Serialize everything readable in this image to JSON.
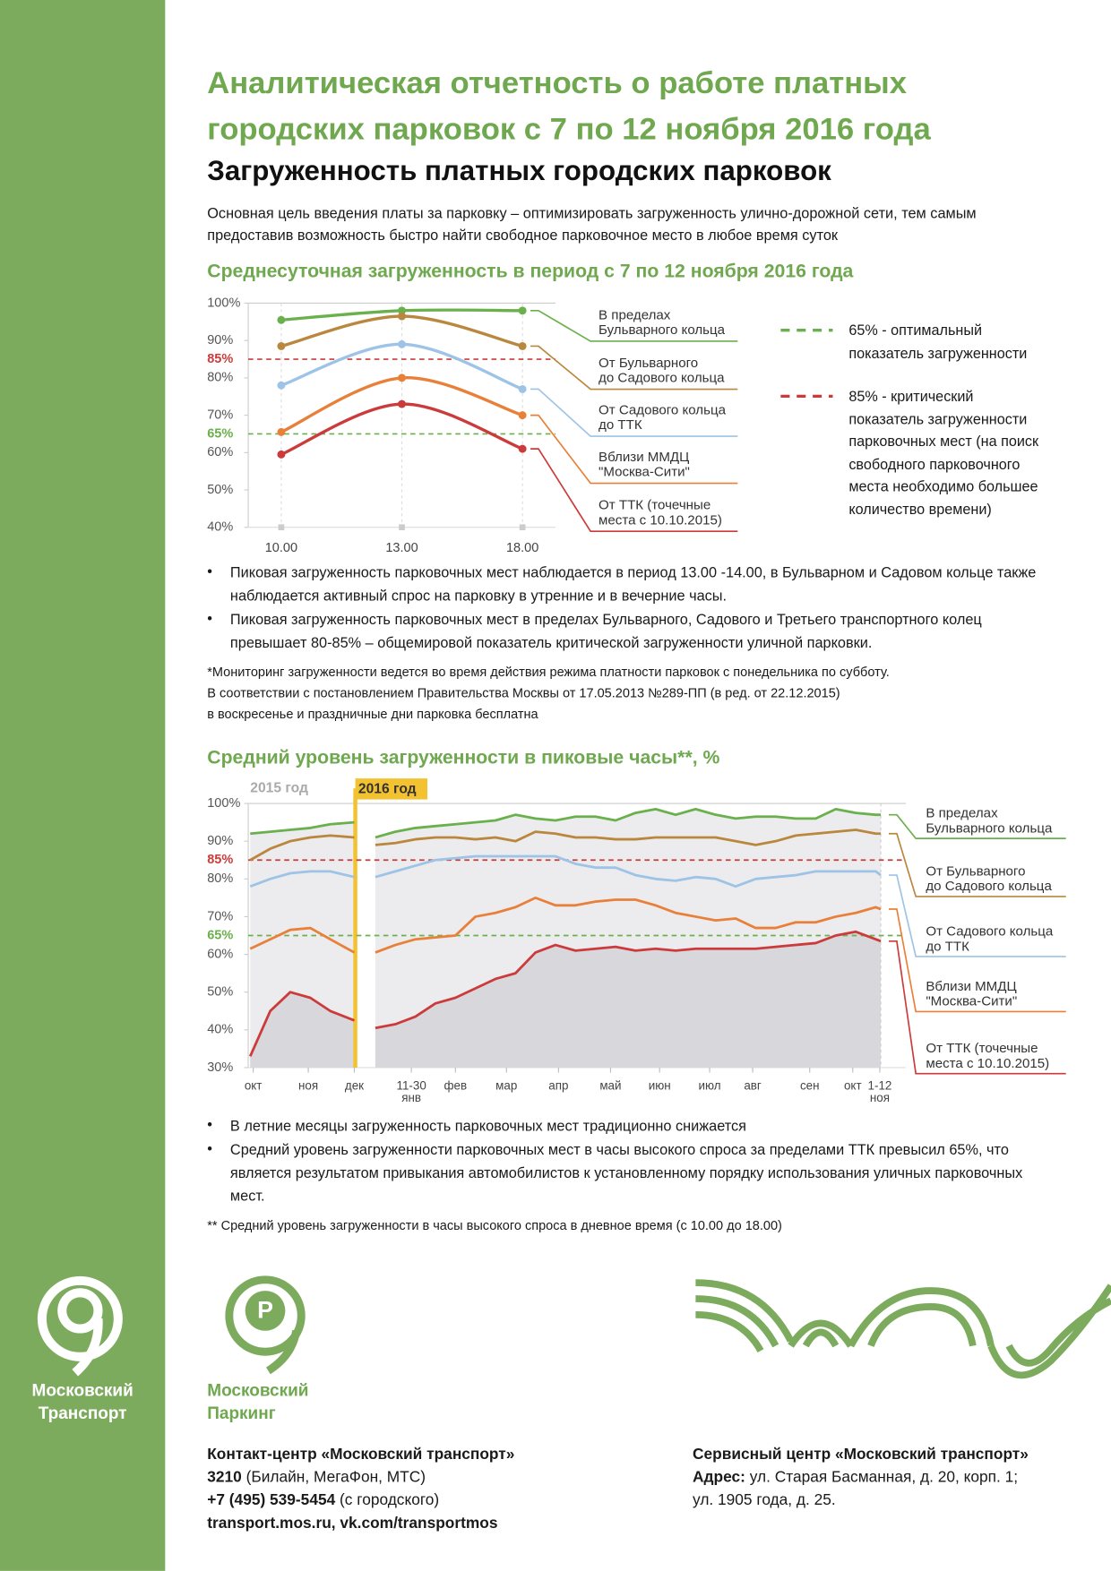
{
  "header": {
    "title": "Аналитическая отчетность о работе платных городских парковок с 7 по 12 ноября 2016 года",
    "subtitle": "Загруженность платных городских парковок",
    "intro": "Основная цель введения платы за парковку – оптимизировать загруженность улично-дорожной сети, тем самым предоставив возможность быстро найти свободное парковочное место в любое время суток"
  },
  "chart_data": [
    {
      "type": "line",
      "title": "Среднесуточная загруженность в период с 7 по 12 ноября 2016 года",
      "categories": [
        "10.00",
        "13.00",
        "18.00"
      ],
      "ylim": [
        40,
        100
      ],
      "yticks": [
        {
          "value": 40,
          "label": "40%"
        },
        {
          "value": 50,
          "label": "50%"
        },
        {
          "value": 60,
          "label": "60%"
        },
        {
          "value": 70,
          "label": "70%"
        },
        {
          "value": 80,
          "label": "80%"
        },
        {
          "value": 90,
          "label": "90%"
        },
        {
          "value": 100,
          "label": "100%"
        }
      ],
      "reference_lines": [
        {
          "value": 65,
          "label": "65%",
          "color": "#6ab04c",
          "description": "65% - оптимальный\nпоказатель загруженности"
        },
        {
          "value": 85,
          "label": "85%",
          "color": "#cc3b3b",
          "description": "85% - критический\nпоказатель загруженности\nпарковочных мест (на поиск\nсвободного парковочного\nместа необходимо большее\nколичество времени)"
        }
      ],
      "series": [
        {
          "name": "В пределах\nБульварного кольца",
          "color": "#6ab04c",
          "values": [
            95.5,
            98,
            98
          ]
        },
        {
          "name": "От Бульварного\nдо Садового кольца",
          "color": "#b9873d",
          "values": [
            88.5,
            96.5,
            88.5
          ]
        },
        {
          "name": "От Садового кольца\nдо ТТК",
          "color": "#9dc3e6",
          "values": [
            78,
            89,
            77
          ]
        },
        {
          "name": "Вблизи ММДЦ\n\"Москва-Сити\"",
          "color": "#e8803a",
          "values": [
            65.5,
            80,
            70
          ]
        },
        {
          "name": "От ТТК (точечные\nместа с 10.10.2015)",
          "color": "#cc3b3b",
          "values": [
            59.5,
            73,
            61
          ]
        }
      ]
    },
    {
      "type": "line",
      "title": "Средний уровень загруженности в пиковые часы**, %",
      "period_labels": [
        "2015 год",
        "2016 год"
      ],
      "x": [
        0,
        2,
        4,
        6,
        8,
        10.4,
        11.5,
        12.5,
        14.5,
        16.5,
        18.5,
        20.5,
        22.5,
        24.5,
        26.5,
        28.5,
        30.5,
        32.5,
        34.5,
        36.5,
        38.5,
        40.5,
        42.5,
        44.5,
        46.5,
        48.5,
        50.5,
        52.5,
        54.5,
        56.5,
        58.5,
        60.5,
        62.5,
        63
      ],
      "xlim": [
        -0.2,
        65.5
      ],
      "xticks": [
        {
          "value": 0.3,
          "label": "окт"
        },
        {
          "value": 5.8,
          "label": "ноя"
        },
        {
          "value": 10.4,
          "label": "дек"
        },
        {
          "value": 16.1,
          "label": "11-30 янв"
        },
        {
          "value": 20.5,
          "label": "фев"
        },
        {
          "value": 25.6,
          "label": "мар"
        },
        {
          "value": 30.8,
          "label": "апр"
        },
        {
          "value": 36,
          "label": "май"
        },
        {
          "value": 40.9,
          "label": "июн"
        },
        {
          "value": 45.9,
          "label": "июл"
        },
        {
          "value": 50.2,
          "label": "авг"
        },
        {
          "value": 55.9,
          "label": "сен"
        },
        {
          "value": 60.2,
          "label": "окт"
        },
        {
          "value": 62.9,
          "label": "1-12 ноя"
        }
      ],
      "ylim": [
        30,
        100
      ],
      "yticks": [
        {
          "value": 30,
          "label": "30%"
        },
        {
          "value": 40,
          "label": "40%"
        },
        {
          "value": 50,
          "label": "50%"
        },
        {
          "value": 60,
          "label": "60%"
        },
        {
          "value": 70,
          "label": "70%"
        },
        {
          "value": 80,
          "label": "80%"
        },
        {
          "value": 90,
          "label": "90%"
        },
        {
          "value": 100,
          "label": "100%"
        }
      ],
      "reference_lines": [
        {
          "value": 65,
          "label": "65%",
          "color": "#6ab04c"
        },
        {
          "value": 85,
          "label": "85%",
          "color": "#cc3b3b"
        }
      ],
      "series": [
        {
          "name": "В пределах\nБульварного кольца",
          "color": "#6ab04c",
          "values": [
            92,
            92.5,
            93,
            93.5,
            94.5,
            95,
            null,
            91,
            92.5,
            93.5,
            94,
            94.5,
            95,
            95.5,
            97,
            96,
            95.5,
            96.5,
            96.5,
            95.5,
            97.5,
            98.5,
            97,
            98.5,
            97,
            96,
            96.5,
            96.5,
            96,
            96,
            98.5,
            97.5,
            97,
            97
          ]
        },
        {
          "name": "От Бульварного\nдо Садового кольца",
          "color": "#b9873d",
          "values": [
            85,
            88,
            90,
            91,
            91.5,
            91,
            null,
            89,
            89.5,
            90.5,
            91,
            91,
            90.5,
            91,
            90,
            92.5,
            92,
            91,
            91,
            90.5,
            90.5,
            91,
            91,
            91,
            91,
            90,
            89,
            90,
            91.5,
            92,
            92.5,
            93,
            92,
            92
          ]
        },
        {
          "name": "От Садового кольца\nдо ТТК",
          "color": "#9dc3e6",
          "values": [
            78,
            80,
            81.5,
            82,
            82,
            80.5,
            null,
            80.5,
            82,
            83.5,
            85,
            85.5,
            86,
            86,
            86,
            86,
            86,
            84,
            83,
            83,
            81,
            80,
            79.5,
            80.5,
            80,
            78,
            80,
            80.5,
            81,
            82,
            82,
            82,
            82,
            81
          ]
        },
        {
          "name": "Вблизи ММДЦ\n\"Москва-Сити\"",
          "color": "#e8803a",
          "values": [
            61.5,
            64,
            66.5,
            67,
            64,
            60.5,
            null,
            60.5,
            62.5,
            64,
            64.5,
            65,
            70,
            71,
            72.5,
            75,
            73,
            73,
            74,
            74.5,
            74.5,
            73,
            71,
            70,
            69,
            69.5,
            67,
            67,
            68.5,
            68.5,
            70,
            71,
            72.5,
            72
          ]
        },
        {
          "name": "От ТТК (точечные\nместа с 10.10.2015)",
          "color": "#cc3b3b",
          "values": [
            33,
            45,
            50,
            48.5,
            45,
            42.5,
            null,
            40.5,
            41.5,
            43.5,
            47,
            48.5,
            51,
            53.5,
            55,
            60.5,
            62.5,
            61,
            61.5,
            62,
            61,
            61.5,
            61,
            61.5,
            61.5,
            61.5,
            61.5,
            62,
            62.5,
            63,
            65,
            66,
            64,
            63.5
          ]
        }
      ]
    }
  ],
  "notes1": {
    "bullets": [
      "Пиковая загруженность парковочных мест наблюдается в период 13.00 -14.00, в Бульварном и Садовом кольце также наблюдается активный спрос на парковку в утренние и в вечерние часы.",
      "Пиковая загруженность парковочных мест в пределах Бульварного, Садового и Третьего транспортного колец превышает 80-85% – общемировой показатель критической загруженности уличной парковки."
    ],
    "footnote": "*Мониторинг загруженности ведется во время действия режима платности парковок с понедельника по субботу.\n В соответствии с постановлением Правительства Москвы от 17.05.2013 №289-ПП (в ред. от 22.12.2015)\n в воскресенье и праздничные дни парковка бесплатна"
  },
  "notes2": {
    "bullets": [
      "В летние месяцы загруженность парковочных мест традиционно снижается",
      "Средний уровень загруженности парковочных мест в часы высокого спроса за пределами ТТК превысил 65%, что является результатом привыкания автомобилистов к установленному порядку использования уличных парковочных мест."
    ],
    "footnote": "** Средний уровень загруженности в часы высокого спроса в дневное время (с 10.00 до 18.00)"
  },
  "footer": {
    "logo_transport": "Московский\nТранспорт",
    "logo_parking": "Московский\nПаркинг",
    "contact_title": "Контакт-центр «Московский транспорт»",
    "phone_short": "3210",
    "phone_short_note": " (Билайн, МегаФон, МТС)",
    "phone": "+7 (495) 539-5454",
    "phone_note": " (с городского)",
    "sites": "transport.mos.ru, vk.com/transportmos",
    "service_title": "Сервисный центр «Московский транспорт»",
    "address_label": "Адрес:",
    "address_1": " ул. Старая Басманная, д. 20, корп. 1;",
    "address_2": "ул. 1905 года, д. 25."
  }
}
